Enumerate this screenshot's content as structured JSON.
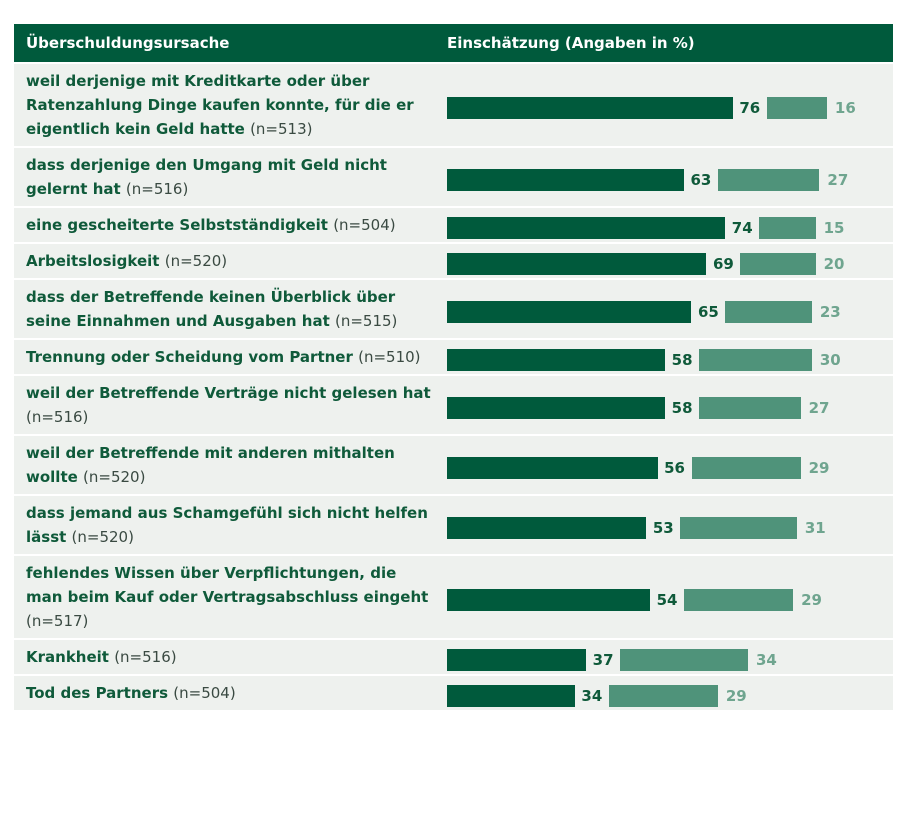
{
  "chart_data": {
    "type": "bar",
    "column_headers": [
      "Überschuldungsursache",
      "Einschätzung (Angaben in %)"
    ],
    "categories": [
      "weil derjenige mit Kreditkarte oder über Ratenzahlung Dinge kaufen konnte, für die er eigentlich kein Geld hatte",
      "dass derjenige den Umgang mit Geld nicht gelernt hat",
      "eine gescheiterte Selbstständigkeit",
      "Arbeitslosigkeit",
      "dass der Betreffende keinen Überblick über seine Einnahmen und Ausgaben hat",
      "Trennung oder Scheidung vom Partner",
      "weil der Betreffende Verträge nicht gelesen hat",
      "weil der Betreffende mit anderen mithalten wollte",
      "dass jemand aus Schamgefühl sich nicht helfen lässt",
      "fehlendes Wissen über Verpflichtungen, die man beim Kauf oder Vertragsabschluss eingeht",
      "Krankheit",
      "Tod des Partners"
    ],
    "sample_sizes": [
      "(n=513)",
      "(n=516)",
      "(n=504)",
      "(n=520)",
      "(n=515)",
      "(n=510)",
      "(n=516)",
      "(n=520)",
      "(n=520)",
      "(n=517)",
      "(n=516)",
      "(n=504)"
    ],
    "series": [
      {
        "color": "#005a3c",
        "values": [
          76,
          63,
          74,
          69,
          65,
          58,
          58,
          56,
          53,
          54,
          37,
          34
        ]
      },
      {
        "color": "#4f937a",
        "values": [
          16,
          27,
          15,
          20,
          23,
          30,
          27,
          29,
          31,
          29,
          34,
          29
        ]
      }
    ]
  }
}
